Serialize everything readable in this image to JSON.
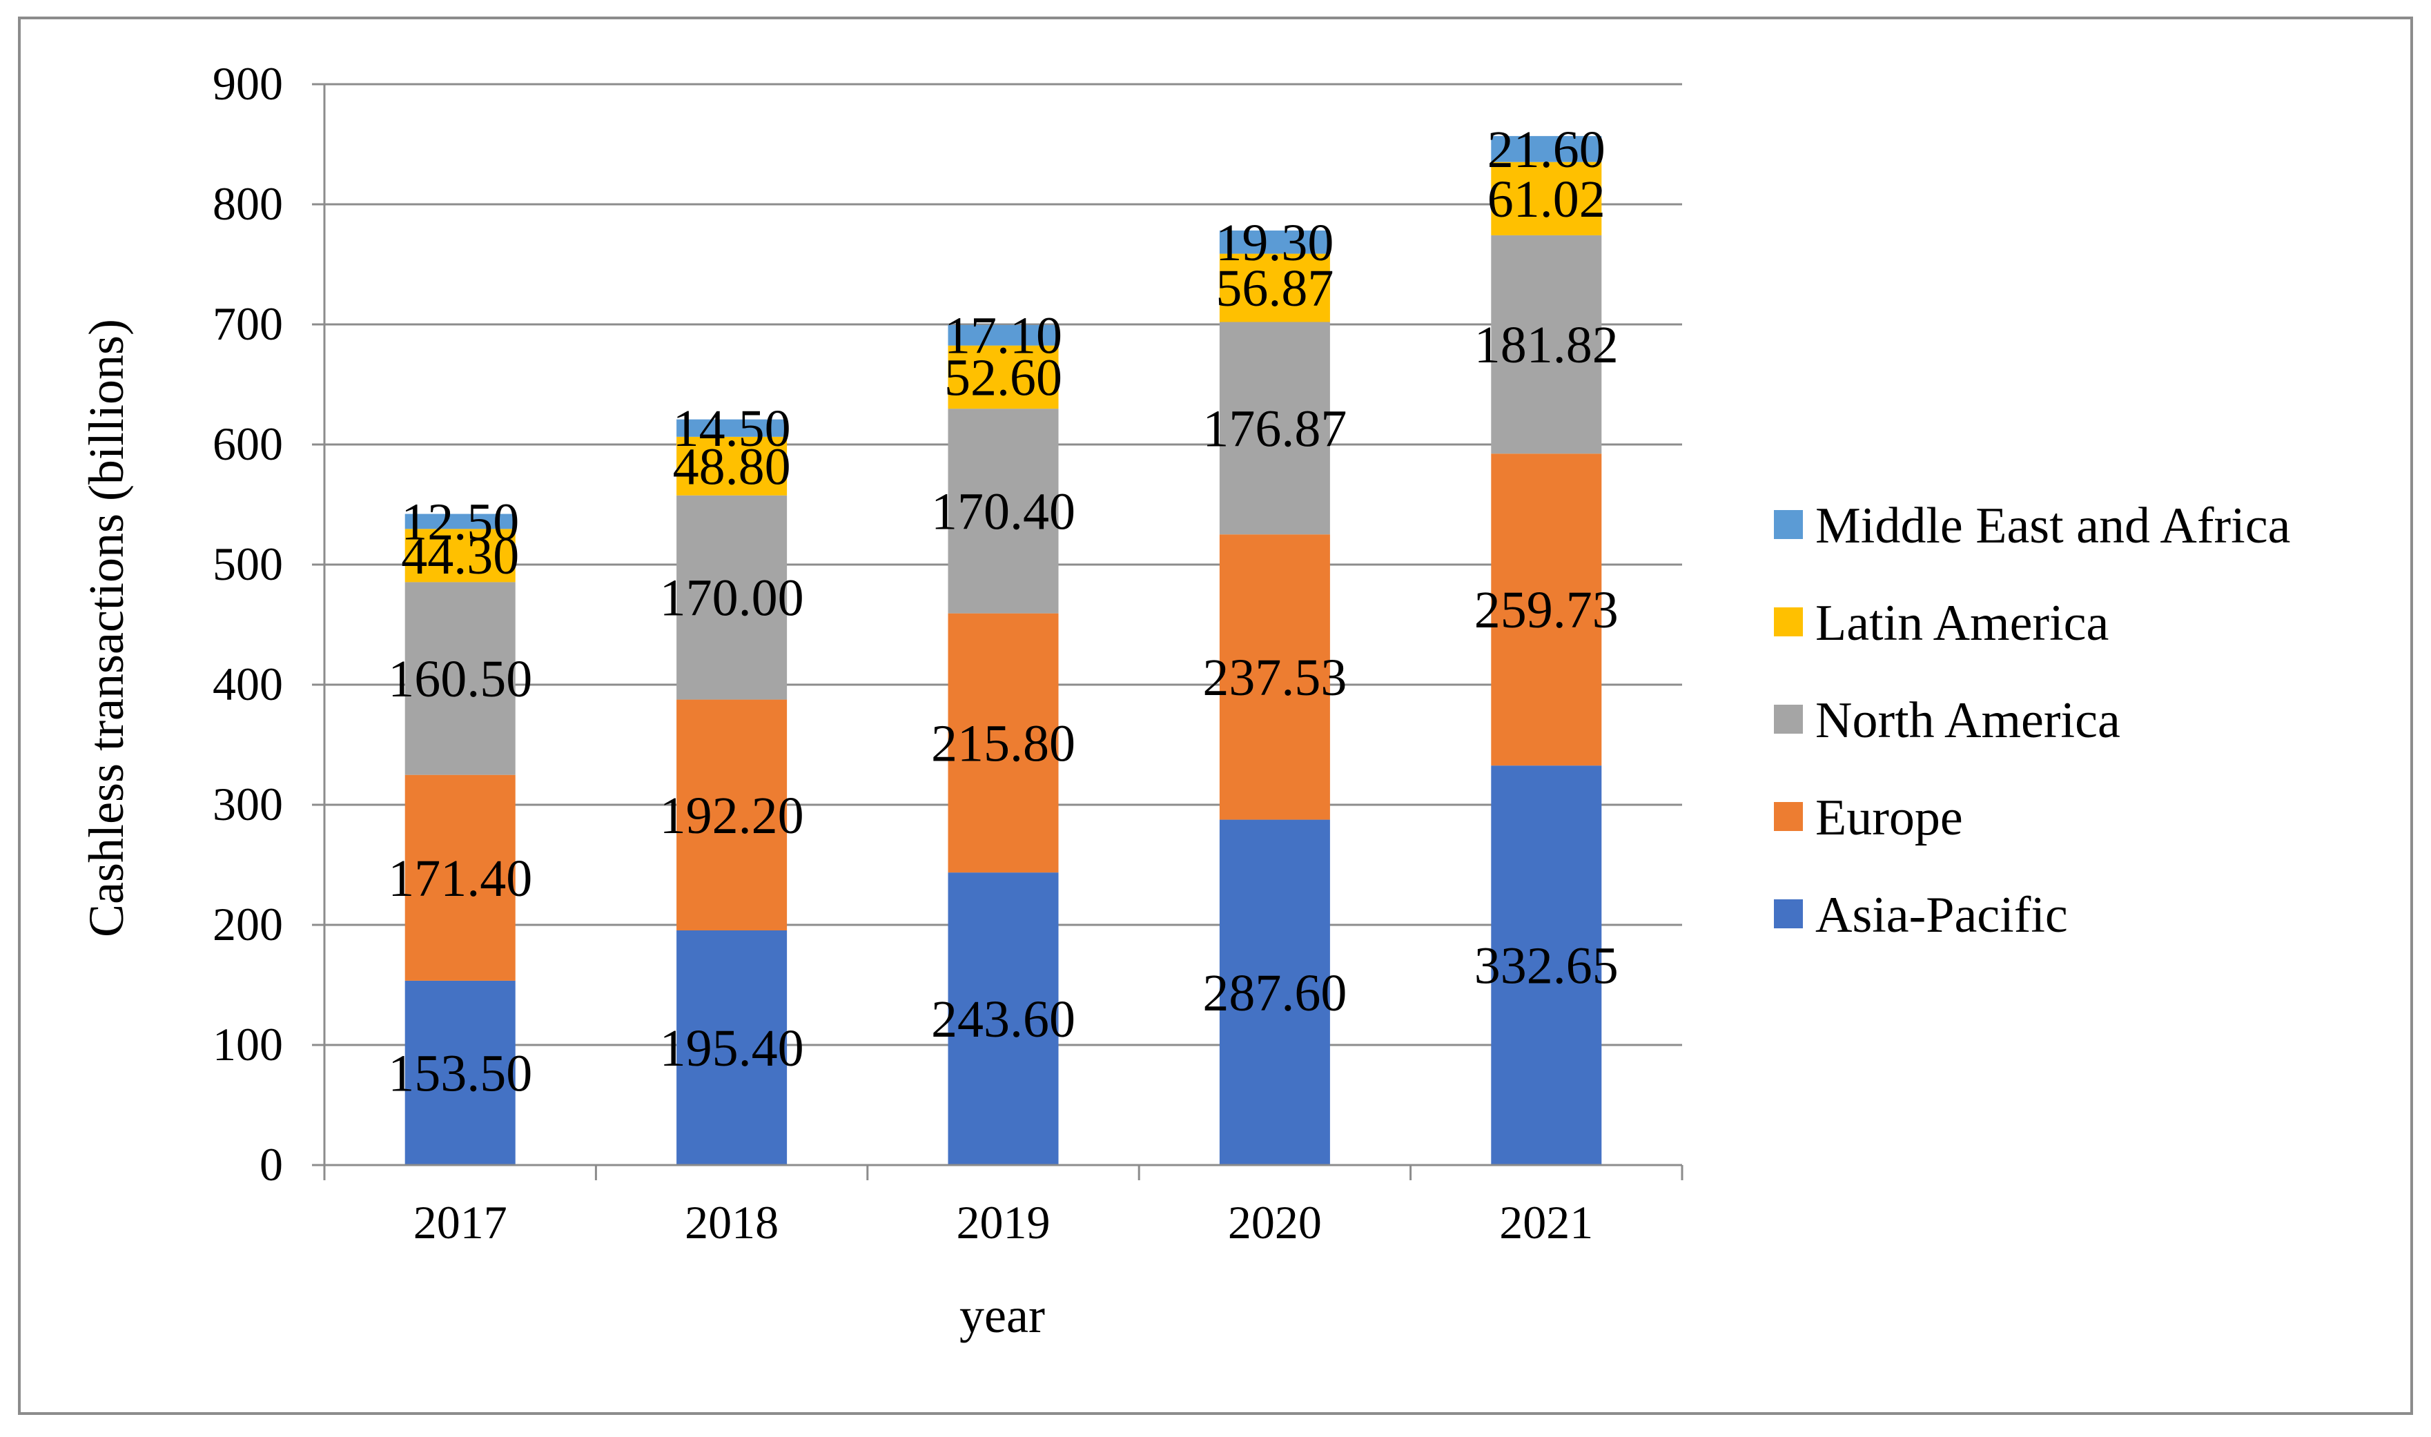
{
  "chart_data": {
    "type": "bar",
    "stacked": true,
    "title": "",
    "xlabel": "year",
    "ylabel": "Cashless transactions (billions)",
    "ylim": [
      0,
      900
    ],
    "yticks": [
      0,
      100,
      200,
      300,
      400,
      500,
      600,
      700,
      800,
      900
    ],
    "grid": true,
    "legend_position": "right",
    "categories": [
      "2017",
      "2018",
      "2019",
      "2020",
      "2021"
    ],
    "series": [
      {
        "name": "Asia-Pacific",
        "color": "#4472C4",
        "values": [
          153.5,
          195.4,
          243.6,
          287.6,
          332.65
        ],
        "labels": [
          "153.50",
          "195.40",
          "243.60",
          "287.60",
          "332.65"
        ]
      },
      {
        "name": "Europe",
        "color": "#ED7D31",
        "values": [
          171.4,
          192.2,
          215.8,
          237.53,
          259.73
        ],
        "labels": [
          "171.40",
          "192.20",
          "215.80",
          "237.53",
          "259.73"
        ]
      },
      {
        "name": "North America",
        "color": "#A5A5A5",
        "values": [
          160.5,
          170.0,
          170.4,
          176.87,
          181.82
        ],
        "labels": [
          "160.50",
          "170.00",
          "170.40",
          "176.87",
          "181.82"
        ]
      },
      {
        "name": "Latin America",
        "color": "#FFC000",
        "values": [
          44.3,
          48.8,
          52.6,
          56.87,
          61.02
        ],
        "labels": [
          "44.30",
          "48.80",
          "52.60",
          "56.87",
          "61.02"
        ]
      },
      {
        "name": "Middle East and Africa",
        "color": "#5B9BD5",
        "values": [
          12.5,
          14.5,
          17.1,
          19.3,
          21.6
        ],
        "labels": [
          "12.50",
          "14.50",
          "17.10",
          "19.30",
          "21.60"
        ]
      }
    ],
    "legend_order": [
      "Middle East and Africa",
      "Latin America",
      "North America",
      "Europe",
      "Asia-Pacific"
    ]
  }
}
